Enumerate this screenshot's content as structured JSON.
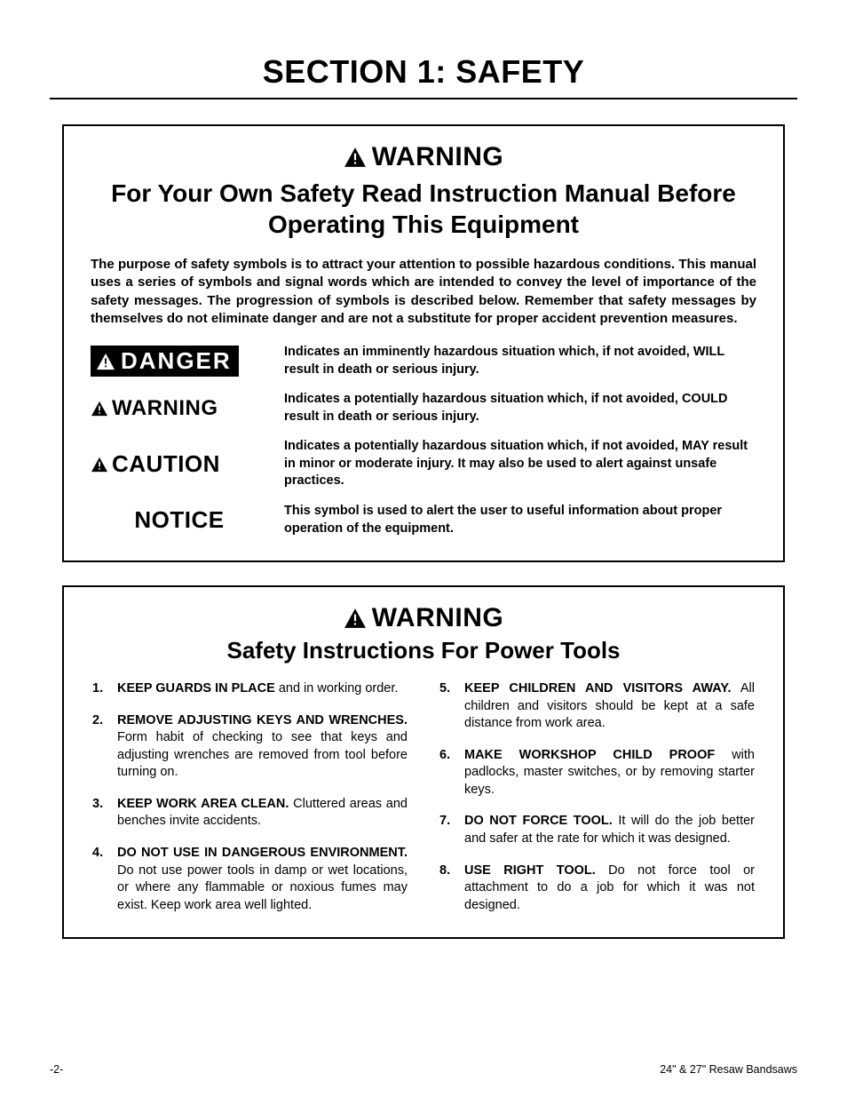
{
  "colors": {
    "text": "#000000",
    "background": "#ffffff",
    "badge_bg": "#000000",
    "badge_text": "#ffffff"
  },
  "typography": {
    "section_title_pt": 27,
    "subtitle_pt": 21,
    "warning_header_pt": 23,
    "body_pt": 11,
    "def_label_pt": 20,
    "footer_pt": 9
  },
  "section_title": "SECTION 1: SAFETY",
  "box1": {
    "warning_label": "WARNING",
    "subtitle": "For Your Own Safety Read Instruction Manual Before Operating This Equipment",
    "intro": "The purpose of safety symbols is to attract your attention to possible hazardous conditions. This manual uses a series of symbols and signal words which are intended to convey the level of importance of the safety messages. The progression of symbols is described below. Remember that safety messages by themselves do not eliminate danger and are not a substitute for proper accident prevention measures.",
    "definitions": [
      {
        "label": "DANGER",
        "text": "Indicates an imminently hazardous situation which, if not avoided, WILL result in death or serious injury."
      },
      {
        "label": "WARNING",
        "text": "Indicates a potentially hazardous situation which, if not avoided, COULD result in death or serious injury."
      },
      {
        "label": "CAUTION",
        "text": "Indicates a potentially hazardous situation which, if not avoided, MAY result in minor or moderate injury. It may also be used to alert against unsafe practices."
      },
      {
        "label": "NOTICE",
        "text": "This symbol is used to alert the user to useful information about proper operation of the equipment."
      }
    ]
  },
  "box2": {
    "warning_label": "WARNING",
    "subtitle": "Safety Instructions For Power Tools",
    "rules_left": [
      {
        "n": "1.",
        "lead": "KEEP GUARDS IN PLACE",
        "rest": " and in working order."
      },
      {
        "n": "2.",
        "lead": "REMOVE ADJUSTING KEYS AND WRENCHES.",
        "rest": " Form habit of checking to see that keys and adjusting wrenches are removed from tool before turning on."
      },
      {
        "n": "3.",
        "lead": "KEEP WORK AREA CLEAN.",
        "rest": " Cluttered areas and benches invite accidents."
      },
      {
        "n": "4.",
        "lead": "DO NOT USE IN DANGEROUS ENVIRONMENT.",
        "rest": " Do not use power tools in damp or wet locations, or where any flammable or noxious fumes may exist. Keep work area well lighted."
      }
    ],
    "rules_right": [
      {
        "n": "5.",
        "lead": "KEEP CHILDREN AND VISITORS AWAY.",
        "rest": " All children and visitors should be kept at a safe distance from work area."
      },
      {
        "n": "6.",
        "lead": "MAKE WORKSHOP CHILD PROOF",
        "rest": " with padlocks, master switches, or by removing starter keys."
      },
      {
        "n": "7.",
        "lead": "DO NOT FORCE TOOL.",
        "rest": " It will do the job better and safer at the rate for which it was designed."
      },
      {
        "n": "8.",
        "lead": "USE RIGHT TOOL.",
        "rest": " Do not force tool or attachment to do a job for which it was not designed."
      }
    ]
  },
  "footer": {
    "left": "-2-",
    "right": "24\" & 27\" Resaw Bandsaws"
  }
}
